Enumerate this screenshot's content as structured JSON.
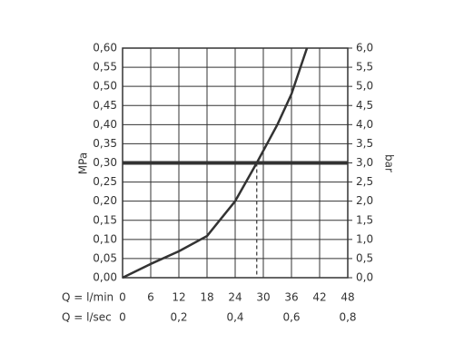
{
  "chart_data": {
    "type": "line",
    "ylabel": "MPa",
    "y2label": "bar",
    "xlabel": "Q = l/min",
    "x2label": "Q = l/sec",
    "x": [
      0,
      6,
      12,
      18,
      24,
      28.6,
      33,
      36,
      39.3
    ],
    "values": [
      0,
      0.036,
      0.069,
      0.109,
      0.2,
      0.3,
      0.4,
      0.48,
      0.6
    ],
    "color": "#333333",
    "xlim": [
      0,
      48
    ],
    "xticks": [
      0,
      6,
      12,
      18,
      24,
      30,
      36,
      42,
      48
    ],
    "x2lim": [
      0,
      0.8
    ],
    "x2ticks": [
      0,
      {
        "value": 0.2,
        "label": "0,2"
      },
      {
        "value": 0.4,
        "label": "0,4"
      },
      {
        "value": 0.6,
        "label": "0,6"
      },
      {
        "value": 0.8,
        "label": "0,8"
      }
    ],
    "ylim": [
      0,
      0.6
    ],
    "yticks": [
      {
        "value": 0,
        "label": "0,00"
      },
      {
        "value": 0.05,
        "label": "0,05"
      },
      {
        "value": 0.1,
        "label": "0,10"
      },
      {
        "value": 0.15,
        "label": "0,15"
      },
      {
        "value": 0.2,
        "label": "0,20"
      },
      {
        "value": 0.25,
        "label": "0,25"
      },
      {
        "value": 0.3,
        "label": "0,30"
      },
      {
        "value": 0.35,
        "label": "0,35"
      },
      {
        "value": 0.4,
        "label": "0,40"
      },
      {
        "value": 0.45,
        "label": "0,45"
      },
      {
        "value": 0.5,
        "label": "0,50"
      },
      {
        "value": 0.55,
        "label": "0,55"
      },
      {
        "value": 0.6,
        "label": "0,60"
      }
    ],
    "y2lim": [
      0,
      6
    ],
    "y2ticks": [
      {
        "value": 0,
        "label": "0,0"
      },
      {
        "value": 0.5,
        "label": "0,5"
      },
      {
        "value": 1,
        "label": "1,0"
      },
      {
        "value": 1.5,
        "label": "1,5"
      },
      {
        "value": 2,
        "label": "2,0"
      },
      {
        "value": 2.5,
        "label": "2,5"
      },
      {
        "value": 3,
        "label": "3,0"
      },
      {
        "value": 3.5,
        "label": "3,5"
      },
      {
        "value": 4,
        "label": "4,0"
      },
      {
        "value": 4.5,
        "label": "4,5"
      },
      {
        "value": 5,
        "label": "5,0"
      },
      {
        "value": 5.5,
        "label": "5,5"
      },
      {
        "value": 6,
        "label": "6,0"
      }
    ],
    "hline": 0.3,
    "vline": 28.6,
    "grid": true
  }
}
